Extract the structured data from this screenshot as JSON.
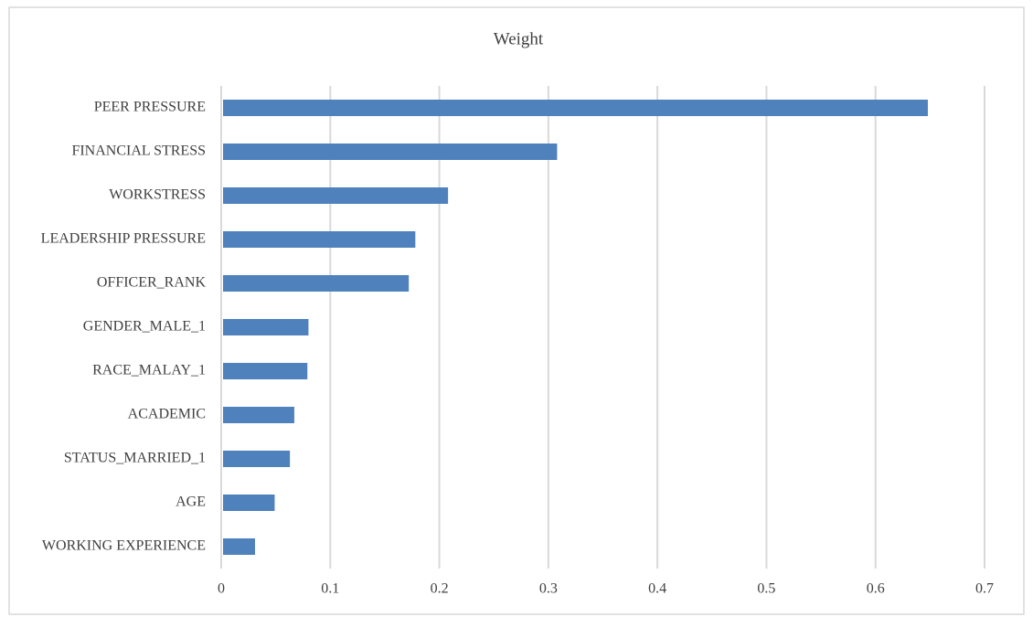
{
  "chart_data": {
    "type": "bar",
    "orientation": "horizontal",
    "title": "Weight",
    "categories": [
      "PEER PRESSURE",
      "FINANCIAL STRESS",
      "WORKSTRESS",
      "LEADERSHIP PRESSURE",
      "OFFICER_RANK",
      "GENDER_MALE_1",
      "RACE_MALAY_1",
      "ACADEMIC",
      "STATUS_MARRIED_1",
      "AGE",
      "WORKING EXPERIENCE"
    ],
    "values": [
      0.648,
      0.308,
      0.208,
      0.178,
      0.172,
      0.08,
      0.079,
      0.067,
      0.063,
      0.049,
      0.031
    ],
    "color": "#4f81bd",
    "xlim": [
      0,
      0.7
    ],
    "xticks": [
      0,
      0.1,
      0.2,
      0.3,
      0.4,
      0.5,
      0.6,
      0.7
    ],
    "grid": true
  }
}
